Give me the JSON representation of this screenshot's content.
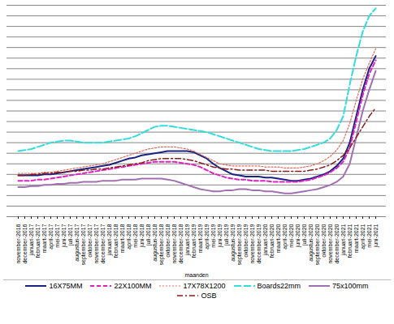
{
  "chart_data": {
    "type": "line",
    "x_label": "maanden",
    "categories": [
      "november-2016",
      "december-2016",
      "januari-2017",
      "februari-2017",
      "maart-2017",
      "april-2017",
      "mei-2017",
      "juni-2017",
      "juli-2017",
      "augustus-2017",
      "september-2017",
      "oktober-2017",
      "november-2017",
      "december-2017",
      "januari-2018",
      "februari-2018",
      "maart-2018",
      "april-2018",
      "mei-2018",
      "juni-2018",
      "juli-2018",
      "augustus-2018",
      "september-2018",
      "oktober-2018",
      "november-2018",
      "december-2018",
      "januari-2019",
      "februari-2019",
      "maart-2019",
      "april-2019",
      "mei-2019",
      "juni-2019",
      "juli-2019",
      "augustus-2019",
      "september-2019",
      "oktober-2019",
      "november-2019",
      "december-2019",
      "januari-2020",
      "februari-2020",
      "maart-2020",
      "april-2020",
      "mei-2020",
      "juni-2020",
      "juli-2020",
      "augustus-2020",
      "september-2020",
      "oktober-2020",
      "november-2020",
      "december-2020",
      "januari-2021",
      "februari-2021",
      "maart-2021",
      "april-2021",
      "mei-2021",
      "juni-2021"
    ],
    "series": [
      {
        "name": "16X75MM",
        "color": "#1a2380",
        "line_style": "solid",
        "values": [
          3.9,
          3.9,
          3.9,
          3.9,
          4.0,
          4.0,
          4.1,
          4.2,
          4.3,
          4.4,
          4.5,
          4.6,
          4.7,
          4.8,
          4.9,
          5.1,
          5.3,
          5.5,
          5.6,
          5.8,
          5.9,
          6.0,
          6.1,
          6.2,
          6.2,
          6.2,
          6.2,
          6.1,
          5.8,
          5.5,
          5.0,
          4.6,
          4.3,
          4.0,
          3.9,
          3.8,
          3.8,
          3.8,
          3.7,
          3.7,
          3.6,
          3.5,
          3.4,
          3.4,
          3.5,
          3.6,
          3.8,
          4.0,
          4.3,
          4.8,
          5.5,
          7.0,
          9.5,
          12.0,
          14.0,
          15.2
        ]
      },
      {
        "name": "22X100MM",
        "color": "#e020c0",
        "line_style": "dashed",
        "values": [
          3.4,
          3.4,
          3.4,
          3.5,
          3.5,
          3.6,
          3.7,
          3.8,
          3.9,
          4.0,
          4.1,
          4.2,
          4.3,
          4.4,
          4.5,
          4.6,
          4.7,
          4.8,
          4.9,
          5.0,
          5.1,
          5.2,
          5.2,
          5.2,
          5.2,
          5.1,
          5.0,
          4.9,
          4.7,
          4.4,
          4.1,
          3.9,
          3.7,
          3.6,
          3.5,
          3.5,
          3.4,
          3.4,
          3.4,
          3.3,
          3.3,
          3.3,
          3.3,
          3.3,
          3.4,
          3.5,
          3.7,
          3.9,
          4.2,
          4.6,
          5.2,
          6.5,
          9.0,
          11.5,
          13.5,
          14.8
        ]
      },
      {
        "name": "17X78X1200",
        "color": "#e06a5a",
        "line_style": "dotted",
        "values": [
          4.1,
          4.1,
          4.1,
          4.1,
          4.2,
          4.2,
          4.3,
          4.4,
          4.5,
          4.6,
          4.7,
          4.8,
          4.9,
          5.0,
          5.2,
          5.4,
          5.6,
          5.8,
          6.0,
          6.2,
          6.4,
          6.5,
          6.6,
          6.6,
          6.6,
          6.5,
          6.4,
          6.2,
          5.9,
          5.6,
          5.3,
          5.0,
          4.9,
          4.8,
          4.8,
          4.8,
          4.8,
          4.8,
          4.7,
          4.7,
          4.7,
          4.6,
          4.6,
          4.6,
          4.7,
          4.8,
          5.0,
          5.3,
          5.7,
          6.3,
          7.2,
          8.8,
          11.0,
          13.0,
          14.5,
          15.9
        ]
      },
      {
        "name": "Boards22mm",
        "color": "#33dddd",
        "line_style": "longdash",
        "values": [
          6.2,
          6.3,
          6.4,
          6.6,
          6.8,
          7.0,
          7.1,
          7.2,
          7.2,
          7.1,
          7.0,
          7.0,
          7.0,
          7.0,
          7.1,
          7.2,
          7.3,
          7.4,
          7.6,
          7.9,
          8.2,
          8.5,
          8.6,
          8.6,
          8.5,
          8.4,
          8.3,
          8.2,
          8.1,
          8.0,
          7.8,
          7.6,
          7.4,
          7.2,
          7.0,
          6.8,
          6.6,
          6.4,
          6.3,
          6.2,
          6.2,
          6.2,
          6.2,
          6.3,
          6.4,
          6.6,
          6.8,
          7.0,
          7.4,
          8.2,
          9.5,
          12.5,
          15.2,
          17.5,
          19.0,
          19.7
        ]
      },
      {
        "name": "75x100mm",
        "color": "#a070b0",
        "line_style": "solid",
        "values": [
          2.8,
          2.8,
          2.9,
          2.9,
          3.0,
          3.0,
          3.1,
          3.1,
          3.2,
          3.2,
          3.3,
          3.3,
          3.3,
          3.4,
          3.4,
          3.4,
          3.5,
          3.5,
          3.5,
          3.6,
          3.6,
          3.6,
          3.6,
          3.5,
          3.4,
          3.2,
          3.0,
          2.8,
          2.6,
          2.5,
          2.4,
          2.4,
          2.5,
          2.5,
          2.6,
          2.6,
          2.5,
          2.5,
          2.4,
          2.4,
          2.3,
          2.2,
          2.2,
          2.3,
          2.4,
          2.5,
          2.6,
          2.8,
          3.0,
          3.3,
          3.8,
          5.0,
          7.5,
          10.0,
          12.0,
          13.8
        ]
      },
      {
        "name": "OSB",
        "color": "#8b1a1a",
        "line_style": "dashdot",
        "values": [
          3.9,
          3.9,
          4.0,
          4.0,
          4.1,
          4.1,
          4.2,
          4.2,
          4.3,
          4.3,
          4.4,
          4.4,
          4.5,
          4.5,
          4.6,
          4.7,
          4.8,
          4.9,
          5.0,
          5.1,
          5.3,
          5.4,
          5.5,
          5.5,
          5.5,
          5.5,
          5.4,
          5.3,
          5.1,
          4.9,
          4.7,
          4.6,
          4.5,
          4.5,
          4.4,
          4.4,
          4.4,
          4.4,
          4.4,
          4.3,
          4.3,
          4.3,
          4.3,
          4.3,
          4.3,
          4.4,
          4.5,
          4.7,
          4.9,
          5.3,
          5.8,
          6.5,
          7.5,
          8.5,
          9.5,
          10.3
        ]
      }
    ],
    "ylim": [
      0,
      20
    ],
    "yticks": [
      0,
      1,
      2,
      3,
      4,
      5,
      6,
      7,
      8,
      9,
      10,
      11,
      12,
      13,
      14,
      15,
      16,
      17,
      18,
      19,
      20
    ],
    "grid": true,
    "tick_labels": "x",
    "legend": "bottom"
  }
}
